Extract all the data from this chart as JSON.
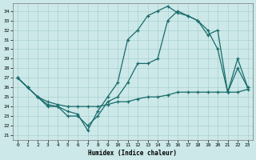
{
  "xlabel": "Humidex (Indice chaleur)",
  "bg_color": "#cce8e8",
  "grid_color": "#aad0d0",
  "line_color": "#1a6b6b",
  "xlim": [
    -0.5,
    23.5
  ],
  "ylim": [
    20.5,
    34.8
  ],
  "yticks": [
    21,
    22,
    23,
    24,
    25,
    26,
    27,
    28,
    29,
    30,
    31,
    32,
    33,
    34
  ],
  "xticks": [
    0,
    1,
    2,
    3,
    4,
    5,
    6,
    7,
    8,
    9,
    10,
    11,
    12,
    13,
    14,
    15,
    16,
    17,
    18,
    19,
    20,
    21,
    22,
    23
  ],
  "line_upper_x": [
    0,
    1,
    2,
    3,
    4,
    5,
    6,
    7,
    8,
    9,
    10,
    11,
    12,
    13,
    14,
    15,
    16,
    17,
    18,
    19,
    20,
    21,
    22,
    23
  ],
  "line_upper_y": [
    27,
    26,
    25,
    24.2,
    24.0,
    23.5,
    23.2,
    21.5,
    23.5,
    25.0,
    26.5,
    31.0,
    32.0,
    33.5,
    34.0,
    34.5,
    33.8,
    33.5,
    33.0,
    32.0,
    30.0,
    25.5,
    28.0,
    26.0
  ],
  "line_middle_x": [
    0,
    1,
    2,
    3,
    4,
    5,
    6,
    7,
    8,
    9,
    10,
    11,
    12,
    13,
    14,
    15,
    16,
    17,
    18,
    19,
    20,
    21,
    22,
    23
  ],
  "line_middle_y": [
    27,
    26,
    25,
    24.0,
    24.0,
    23.0,
    23.0,
    22.0,
    23.0,
    24.5,
    25.0,
    26.5,
    28.5,
    28.5,
    29.0,
    33.0,
    34.0,
    33.5,
    33.0,
    31.5,
    32.0,
    25.5,
    29.0,
    26.0
  ],
  "line_lower_x": [
    0,
    1,
    2,
    3,
    4,
    5,
    6,
    7,
    8,
    9,
    10,
    11,
    12,
    13,
    14,
    15,
    16,
    17,
    18,
    19,
    20,
    21,
    22,
    23
  ],
  "line_lower_y": [
    27,
    26,
    25,
    24.5,
    24.2,
    24.0,
    24.0,
    24.0,
    24.0,
    24.2,
    24.5,
    24.5,
    24.8,
    25.0,
    25.0,
    25.2,
    25.5,
    25.5,
    25.5,
    25.5,
    25.5,
    25.5,
    25.5,
    25.8
  ]
}
